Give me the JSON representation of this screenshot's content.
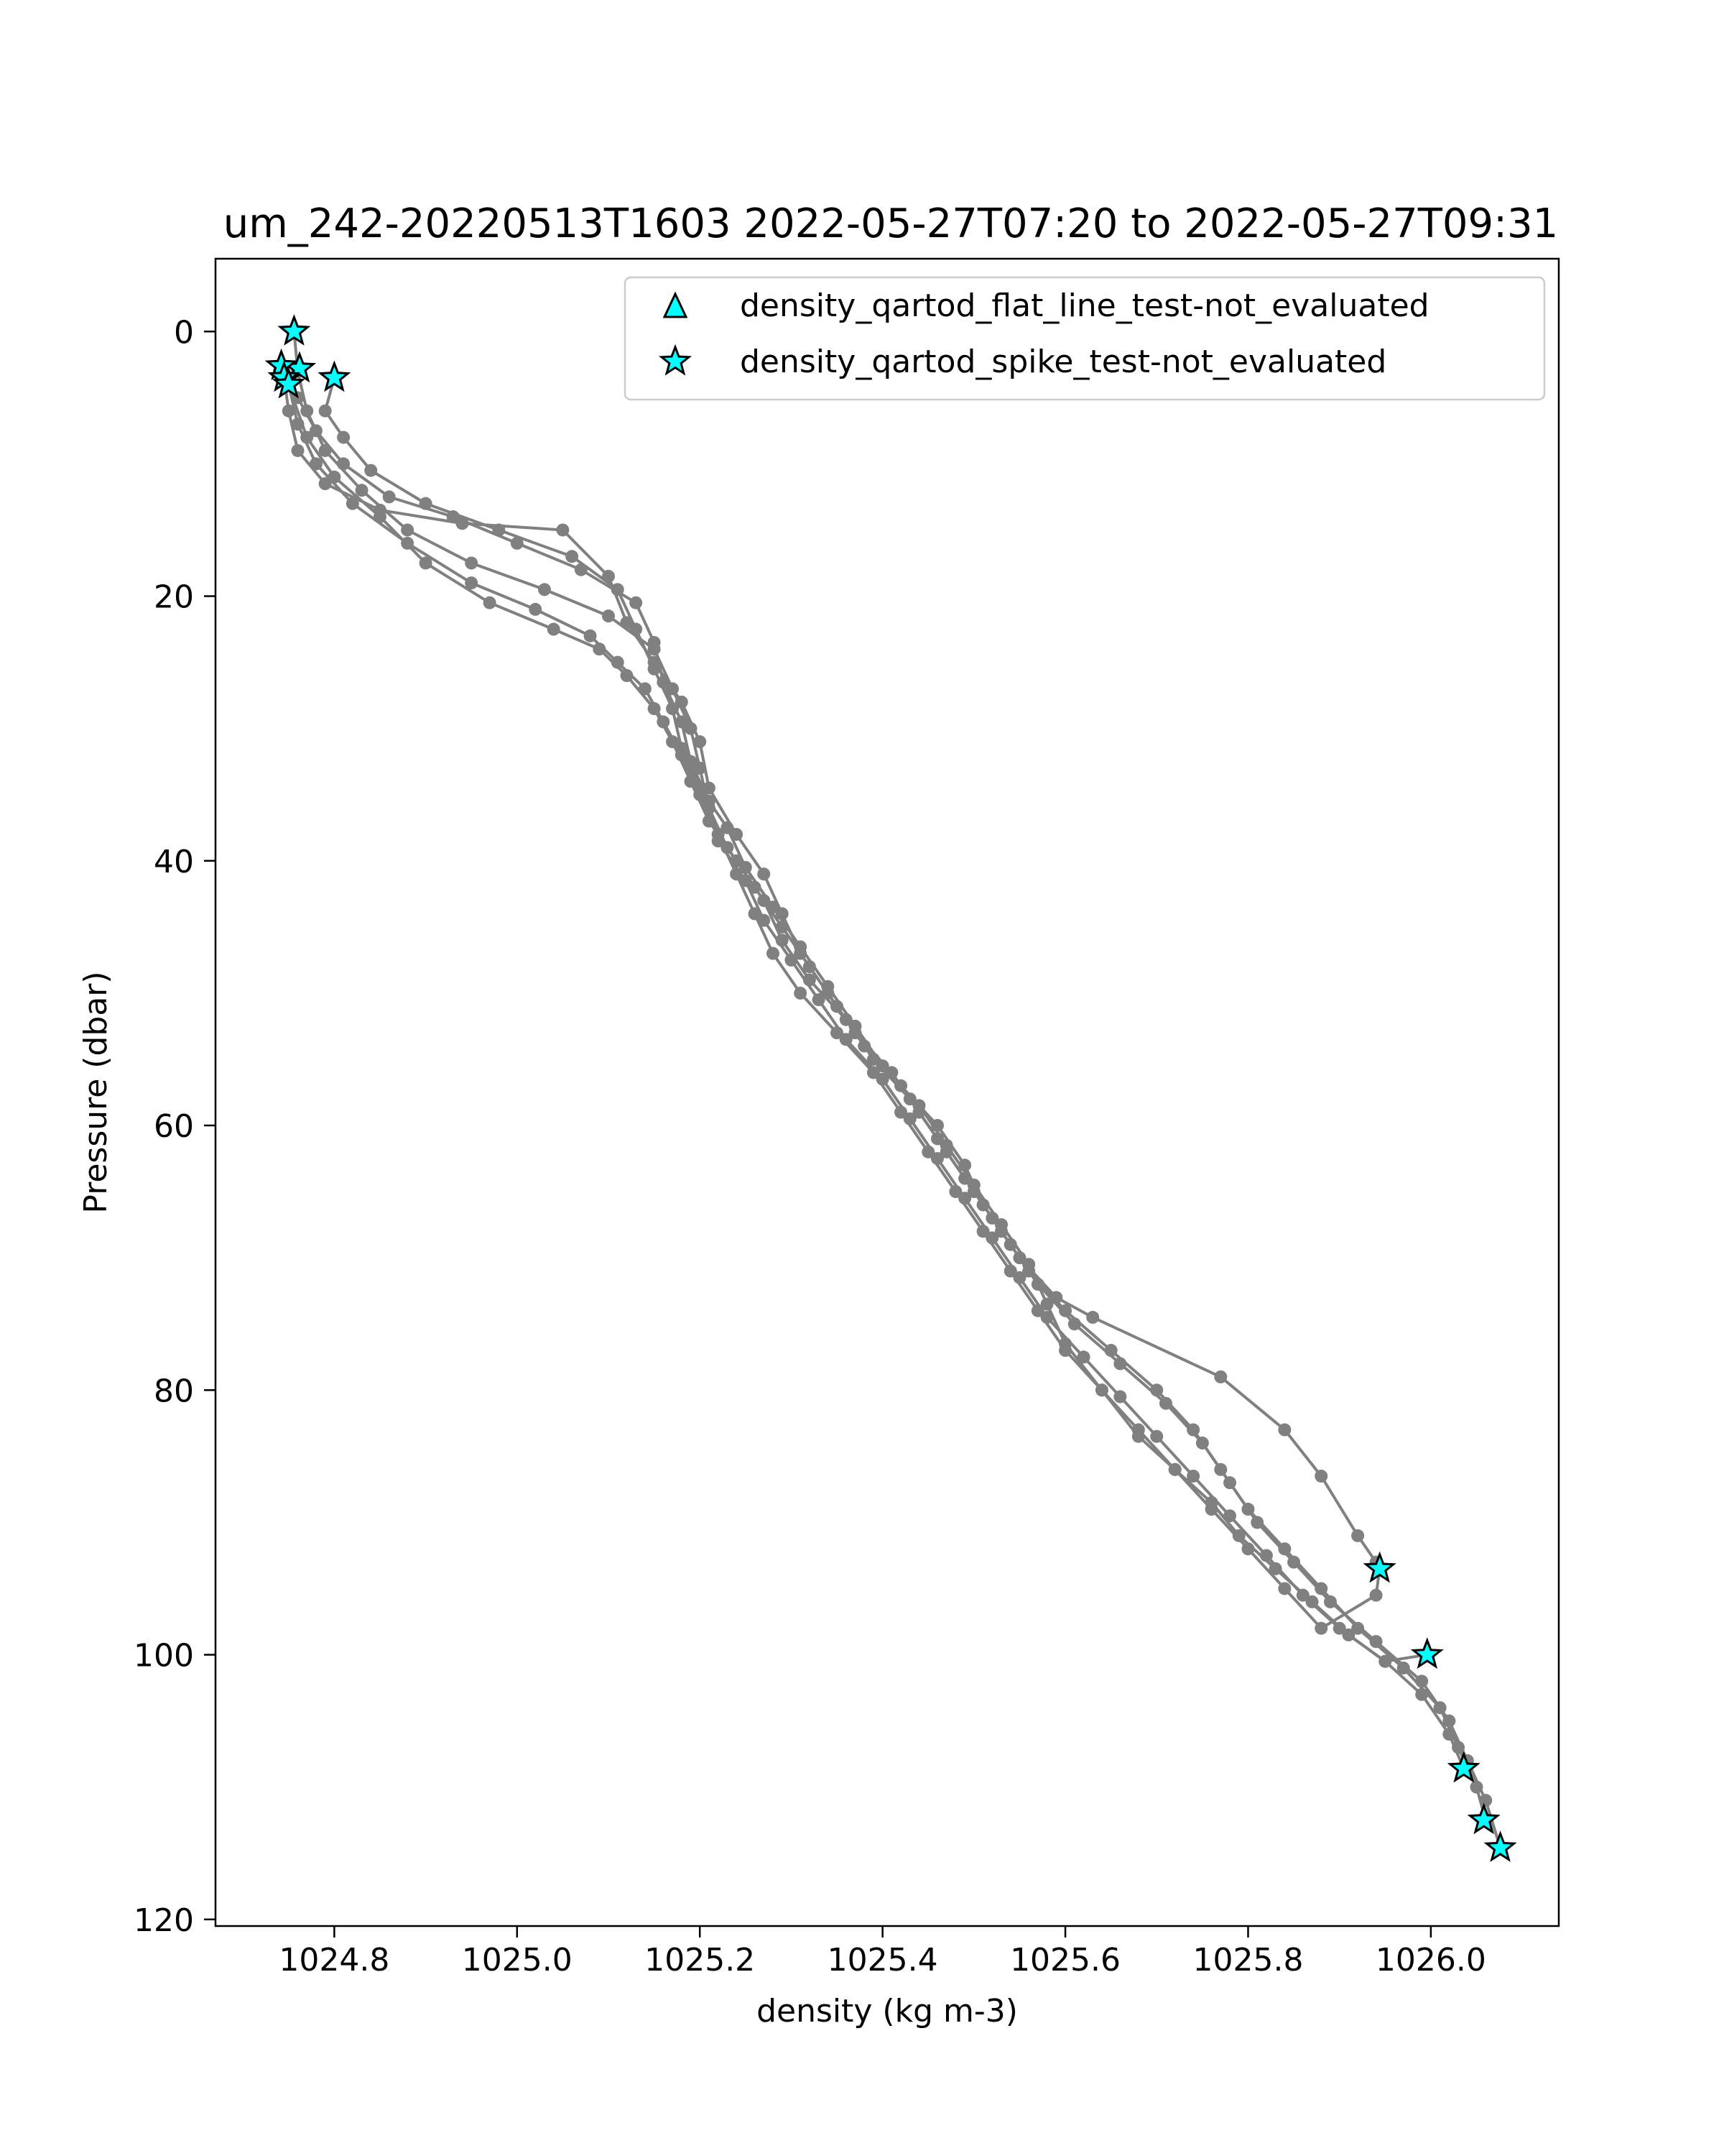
{
  "chart_data": {
    "type": "line",
    "title": "um_242-20220513T1603 2022-05-27T07:20 to 2022-05-27T09:31",
    "xlabel": "density (kg m-3)",
    "ylabel": "Pressure (dbar)",
    "xlim": [
      1024.67,
      1026.14
    ],
    "ylim": [
      120.5,
      -5.5
    ],
    "y_inverted": true,
    "grid": false,
    "x_ticks": [
      1024.8,
      1025.0,
      1025.2,
      1025.4,
      1025.6,
      1025.8,
      1026.0
    ],
    "x_tick_labels": [
      "1024.8",
      "1025.0",
      "1025.2",
      "1025.4",
      "1025.6",
      "1025.8",
      "1026.0"
    ],
    "y_ticks": [
      0,
      20,
      40,
      60,
      80,
      100,
      120
    ],
    "y_tick_labels": [
      "0",
      "20",
      "40",
      "60",
      "80",
      "100",
      "120"
    ],
    "line_color": "#808080",
    "flag_color": "#00ffff",
    "legend": {
      "location": "upper right",
      "entries": [
        {
          "label": "density_qartod_flat_line_test-not_evaluated",
          "marker": "triangle"
        },
        {
          "label": "density_qartod_spike_test-not_evaluated",
          "marker": "star"
        }
      ]
    },
    "series": [
      {
        "points": [
          [
            1024.756,
            0.0
          ],
          [
            1024.76,
            3.0
          ],
          [
            1024.77,
            6.0
          ],
          [
            1024.79,
            9.0
          ],
          [
            1024.83,
            12.0
          ],
          [
            1024.88,
            15.0
          ],
          [
            1024.95,
            17.5
          ],
          [
            1025.03,
            19.5
          ],
          [
            1025.1,
            21.5
          ],
          [
            1025.15,
            24.0
          ],
          [
            1025.17,
            27.0
          ],
          [
            1025.19,
            30.0
          ],
          [
            1025.2,
            33.0
          ],
          [
            1025.21,
            36.0
          ],
          [
            1025.23,
            39.0
          ],
          [
            1025.26,
            42.0
          ],
          [
            1025.29,
            45.0
          ],
          [
            1025.32,
            48.0
          ],
          [
            1025.35,
            51.0
          ],
          [
            1025.38,
            54.0
          ],
          [
            1025.42,
            57.0
          ],
          [
            1025.46,
            60.0
          ],
          [
            1025.49,
            63.0
          ],
          [
            1025.51,
            66.0
          ],
          [
            1025.54,
            69.0
          ],
          [
            1025.57,
            72.0
          ],
          [
            1025.61,
            75.0
          ],
          [
            1025.66,
            78.0
          ],
          [
            1025.71,
            81.0
          ],
          [
            1025.75,
            84.0
          ],
          [
            1025.78,
            87.0
          ],
          [
            1025.81,
            90.0
          ],
          [
            1025.85,
            93.0
          ],
          [
            1025.89,
            96.0
          ],
          [
            1025.94,
            99.0
          ],
          [
            1025.99,
            102.0
          ],
          [
            1026.02,
            105.0
          ],
          [
            1026.04,
            108.0
          ],
          [
            1026.06,
            111.0
          ],
          [
            1026.076,
            114.6
          ]
        ]
      },
      {
        "points": [
          [
            1024.745,
            3.5
          ],
          [
            1024.75,
            6.0
          ],
          [
            1024.76,
            9.0
          ],
          [
            1024.79,
            11.5
          ],
          [
            1024.85,
            13.5
          ],
          [
            1024.94,
            14.5
          ],
          [
            1025.05,
            15.0
          ],
          [
            1025.1,
            18.5
          ],
          [
            1025.12,
            22.0
          ],
          [
            1025.15,
            25.0
          ],
          [
            1025.18,
            28.0
          ],
          [
            1025.2,
            31.0
          ],
          [
            1025.21,
            34.5
          ],
          [
            1025.24,
            38.0
          ],
          [
            1025.27,
            41.0
          ],
          [
            1025.29,
            44.0
          ],
          [
            1025.31,
            47.0
          ],
          [
            1025.34,
            50.0
          ],
          [
            1025.37,
            53.0
          ],
          [
            1025.41,
            56.0
          ],
          [
            1025.44,
            59.0
          ],
          [
            1025.47,
            62.0
          ],
          [
            1025.5,
            65.0
          ],
          [
            1025.53,
            68.0
          ],
          [
            1025.56,
            71.0
          ],
          [
            1025.6,
            74.0
          ],
          [
            1025.65,
            77.0
          ],
          [
            1025.7,
            80.0
          ],
          [
            1025.74,
            83.0
          ],
          [
            1025.77,
            86.0
          ],
          [
            1025.8,
            89.0
          ],
          [
            1025.84,
            92.0
          ],
          [
            1025.88,
            95.0
          ],
          [
            1025.92,
            98.0
          ],
          [
            1025.97,
            101.0
          ],
          [
            1026.01,
            104.0
          ],
          [
            1026.03,
            107.0
          ],
          [
            1026.05,
            110.0
          ],
          [
            1026.06,
            112.5
          ]
        ]
      },
      {
        "points": [
          [
            1024.74,
            3.0
          ],
          [
            1024.76,
            5.0
          ],
          [
            1024.78,
            7.5
          ],
          [
            1024.81,
            10.0
          ],
          [
            1024.86,
            12.5
          ],
          [
            1024.93,
            14.0
          ],
          [
            1025.0,
            16.0
          ],
          [
            1025.07,
            18.0
          ],
          [
            1025.13,
            20.5
          ],
          [
            1025.15,
            23.5
          ],
          [
            1025.16,
            26.5
          ],
          [
            1025.18,
            29.5
          ],
          [
            1025.19,
            32.5
          ],
          [
            1025.21,
            35.5
          ],
          [
            1025.22,
            38.5
          ],
          [
            1025.25,
            41.5
          ],
          [
            1025.27,
            44.5
          ],
          [
            1025.3,
            47.5
          ],
          [
            1025.33,
            50.5
          ],
          [
            1025.36,
            53.5
          ],
          [
            1025.4,
            56.5
          ],
          [
            1025.43,
            59.5
          ],
          [
            1025.46,
            62.5
          ],
          [
            1025.49,
            65.5
          ],
          [
            1025.52,
            68.5
          ],
          [
            1025.55,
            71.5
          ],
          [
            1025.58,
            74.5
          ],
          [
            1025.62,
            77.5
          ],
          [
            1025.66,
            80.5
          ],
          [
            1025.7,
            83.5
          ],
          [
            1025.74,
            86.5
          ],
          [
            1025.78,
            89.5
          ],
          [
            1025.82,
            92.5
          ],
          [
            1025.86,
            95.5
          ],
          [
            1025.9,
            98.0
          ],
          [
            1025.95,
            100.5
          ],
          [
            1025.99,
            103.0
          ],
          [
            1026.02,
            106.0
          ],
          [
            1026.036,
            108.6
          ]
        ]
      },
      {
        "points": [
          [
            1024.8,
            3.5
          ],
          [
            1024.79,
            6.0
          ],
          [
            1024.81,
            8.0
          ],
          [
            1024.84,
            10.5
          ],
          [
            1024.9,
            13.0
          ],
          [
            1024.98,
            15.0
          ],
          [
            1025.06,
            17.0
          ],
          [
            1025.11,
            19.5
          ],
          [
            1025.13,
            22.5
          ],
          [
            1025.15,
            25.5
          ],
          [
            1025.17,
            28.5
          ],
          [
            1025.18,
            31.5
          ],
          [
            1025.2,
            34.5
          ],
          [
            1025.23,
            37.5
          ],
          [
            1025.25,
            40.5
          ],
          [
            1025.28,
            43.5
          ],
          [
            1025.31,
            46.5
          ],
          [
            1025.34,
            49.5
          ],
          [
            1025.37,
            52.5
          ],
          [
            1025.4,
            55.5
          ],
          [
            1025.44,
            58.5
          ],
          [
            1025.47,
            61.5
          ],
          [
            1025.5,
            64.5
          ],
          [
            1025.53,
            67.5
          ],
          [
            1025.56,
            70.5
          ],
          [
            1025.58,
            73.5
          ],
          [
            1025.6,
            76.5
          ],
          [
            1025.64,
            80.0
          ],
          [
            1025.68,
            83.5
          ],
          [
            1025.72,
            86.0
          ],
          [
            1025.76,
            88.5
          ],
          [
            1025.79,
            91.0
          ],
          [
            1025.83,
            93.5
          ],
          [
            1025.87,
            96.0
          ],
          [
            1025.91,
            98.5
          ],
          [
            1025.95,
            100.5
          ],
          [
            1025.996,
            100.0
          ]
        ]
      },
      {
        "points": [
          [
            1024.75,
            4.0
          ],
          [
            1024.76,
            7.0
          ],
          [
            1024.78,
            10.0
          ],
          [
            1024.82,
            13.0
          ],
          [
            1024.88,
            16.0
          ],
          [
            1024.95,
            19.0
          ],
          [
            1025.02,
            21.0
          ],
          [
            1025.08,
            23.0
          ],
          [
            1025.11,
            25.0
          ],
          [
            1025.14,
            27.0
          ],
          [
            1025.16,
            29.5
          ],
          [
            1025.18,
            32.0
          ],
          [
            1025.2,
            35.0
          ],
          [
            1025.22,
            38.0
          ],
          [
            1025.24,
            41.0
          ],
          [
            1025.26,
            44.0
          ],
          [
            1025.28,
            47.0
          ],
          [
            1025.31,
            50.0
          ],
          [
            1025.35,
            53.0
          ],
          [
            1025.39,
            56.0
          ],
          [
            1025.42,
            59.0
          ],
          [
            1025.45,
            62.0
          ],
          [
            1025.48,
            65.0
          ],
          [
            1025.51,
            68.0
          ],
          [
            1025.54,
            71.0
          ],
          [
            1025.57,
            74.0
          ],
          [
            1025.6,
            77.0
          ],
          [
            1025.64,
            80.0
          ],
          [
            1025.68,
            83.0
          ],
          [
            1025.72,
            86.0
          ],
          [
            1025.76,
            89.0
          ],
          [
            1025.8,
            92.0
          ],
          [
            1025.84,
            95.0
          ],
          [
            1025.88,
            98.0
          ],
          [
            1025.94,
            95.5
          ],
          [
            1025.944,
            93.5
          ]
        ]
      },
      {
        "points": [
          [
            1024.742,
            2.5
          ],
          [
            1024.77,
            8.0
          ],
          [
            1024.8,
            11.0
          ],
          [
            1024.85,
            14.0
          ],
          [
            1024.9,
            17.5
          ],
          [
            1024.97,
            20.5
          ],
          [
            1025.04,
            22.5
          ],
          [
            1025.09,
            24.0
          ],
          [
            1025.12,
            26.0
          ],
          [
            1025.15,
            28.5
          ],
          [
            1025.17,
            31.0
          ],
          [
            1025.19,
            34.0
          ],
          [
            1025.21,
            37.0
          ],
          [
            1025.24,
            40.0
          ],
          [
            1025.27,
            43.0
          ],
          [
            1025.29,
            46.0
          ],
          [
            1025.32,
            49.0
          ],
          [
            1025.36,
            52.0
          ],
          [
            1025.39,
            55.0
          ],
          [
            1025.43,
            58.0
          ],
          [
            1025.46,
            61.0
          ],
          [
            1025.49,
            64.0
          ],
          [
            1025.52,
            67.0
          ],
          [
            1025.55,
            70.0
          ],
          [
            1025.59,
            73.0
          ],
          [
            1025.63,
            74.5
          ],
          [
            1025.77,
            79.0
          ],
          [
            1025.84,
            83.0
          ],
          [
            1025.88,
            86.5
          ],
          [
            1025.92,
            91.0
          ],
          [
            1025.94,
            93.0
          ]
        ]
      }
    ],
    "flagged_points": {
      "flat_line_test": [],
      "spike_test": [
        [
          1024.756,
          0.0
        ],
        [
          1024.762,
          2.8
        ],
        [
          1024.742,
          2.6
        ],
        [
          1024.745,
          3.5
        ],
        [
          1024.75,
          4.0
        ],
        [
          1024.8,
          3.5
        ],
        [
          1025.944,
          93.5
        ],
        [
          1025.996,
          100.0
        ],
        [
          1026.036,
          108.6
        ],
        [
          1026.058,
          112.5
        ],
        [
          1026.076,
          114.6
        ]
      ]
    }
  }
}
